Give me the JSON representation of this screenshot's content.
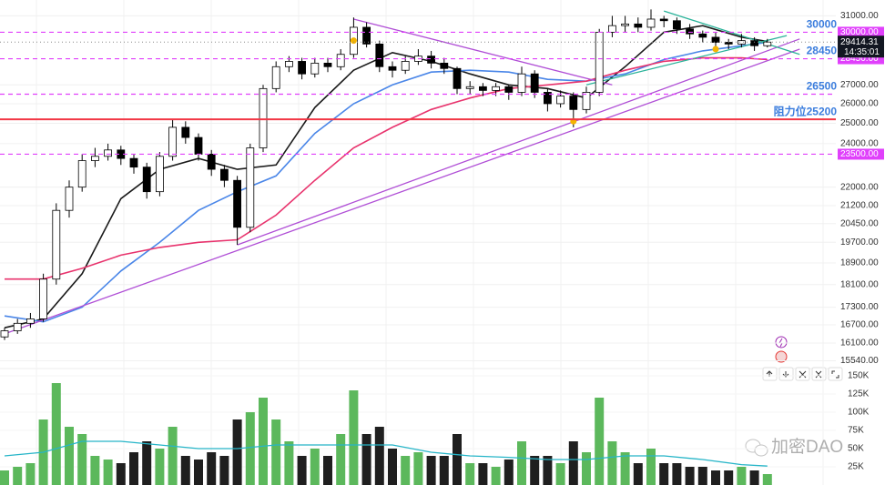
{
  "chart_data": {
    "type": "candlestick",
    "log_y": true,
    "grid": true,
    "up_color": "#ffffff",
    "down_color": "#000000",
    "volume_up_color": "#5cb85c",
    "volume_down_color": "#1f1f1f",
    "open": [
      16300,
      16500,
      16750,
      16900,
      18300,
      21000,
      22000,
      23200,
      23400,
      23700,
      23300,
      22900,
      21800,
      23400,
      24800,
      24300,
      23500,
      22800,
      22300,
      20300,
      23800,
      26800,
      28000,
      28300,
      27600,
      28200,
      28000,
      28700,
      30300,
      29300,
      28000,
      27800,
      28300,
      28600,
      28200,
      27900,
      26800,
      26900,
      26700,
      26900,
      26600,
      27600,
      26600,
      26000,
      26400,
      25700,
      26600,
      30000,
      30400,
      30500,
      30300,
      30800,
      30700,
      30200,
      29900,
      29700,
      29400,
      29300,
      29500,
      29200
    ],
    "high": [
      16600,
      16900,
      17100,
      18500,
      21300,
      22300,
      23500,
      23800,
      24000,
      23900,
      23500,
      23100,
      23600,
      25200,
      25100,
      24500,
      23700,
      23000,
      22500,
      24000,
      27000,
      28300,
      28600,
      28500,
      28500,
      28500,
      29000,
      30900,
      30600,
      29500,
      28300,
      28600,
      29000,
      28900,
      28500,
      28000,
      27200,
      27100,
      27100,
      27000,
      28000,
      27800,
      26800,
      26700,
      26600,
      26900,
      30200,
      31000,
      31000,
      30900,
      31400,
      31000,
      30900,
      30500,
      30100,
      30000,
      29600,
      29900,
      29700,
      29600
    ],
    "low": [
      16200,
      16400,
      16600,
      16800,
      18100,
      20700,
      21800,
      22900,
      23200,
      23000,
      22600,
      21500,
      21600,
      23200,
      24000,
      23200,
      22500,
      22000,
      19600,
      20100,
      23600,
      26600,
      27700,
      27300,
      27400,
      27700,
      27800,
      28500,
      29100,
      27700,
      27400,
      27600,
      28100,
      27900,
      27600,
      26500,
      26500,
      26400,
      26400,
      26200,
      26400,
      26300,
      25600,
      25800,
      24800,
      25500,
      26400,
      29700,
      30000,
      30000,
      30100,
      30300,
      29900,
      29600,
      29400,
      29000,
      29000,
      29100,
      28900,
      29100
    ],
    "close": [
      16500,
      16750,
      16900,
      18300,
      21000,
      22000,
      23200,
      23400,
      23700,
      23300,
      22900,
      21800,
      23400,
      24800,
      24300,
      23500,
      22800,
      22300,
      20300,
      23800,
      26800,
      28000,
      28300,
      27600,
      28200,
      28000,
      28700,
      30300,
      29300,
      28000,
      27800,
      28300,
      28600,
      28200,
      27900,
      26800,
      26900,
      26700,
      26900,
      26600,
      27600,
      26600,
      26000,
      26400,
      25700,
      26600,
      30000,
      30400,
      30500,
      30300,
      30800,
      30700,
      30200,
      29900,
      29700,
      29400,
      29300,
      29500,
      29200,
      29414.31
    ],
    "volume": [
      20000,
      25000,
      30000,
      90000,
      140000,
      80000,
      70000,
      40000,
      35000,
      30000,
      45000,
      60000,
      50000,
      80000,
      40000,
      35000,
      45000,
      40000,
      90000,
      100000,
      120000,
      90000,
      60000,
      40000,
      50000,
      40000,
      70000,
      130000,
      70000,
      80000,
      50000,
      40000,
      45000,
      40000,
      40000,
      70000,
      30000,
      30000,
      25000,
      35000,
      60000,
      40000,
      40000,
      30000,
      60000,
      45000,
      120000,
      60000,
      45000,
      30000,
      50000,
      30000,
      30000,
      25000,
      25000,
      20000,
      20000,
      25000,
      20000,
      15000
    ],
    "ylim": [
      15300,
      32000
    ],
    "yticks": [
      {
        "value": 31000,
        "label": "31000.00"
      },
      {
        "value": 27000,
        "label": "27000.00"
      },
      {
        "value": 26000,
        "label": "26000.00"
      },
      {
        "value": 25000,
        "label": "25000.00"
      },
      {
        "value": 24000,
        "label": "24000.00"
      },
      {
        "value": 22000,
        "label": "22000.00"
      },
      {
        "value": 21200,
        "label": "21200.00"
      },
      {
        "value": 20450,
        "label": "20450.00"
      },
      {
        "value": 19700,
        "label": "19700.00"
      },
      {
        "value": 18900,
        "label": "18900.00"
      },
      {
        "value": 18100,
        "label": "18100.00"
      },
      {
        "value": 17300,
        "label": "17300.00"
      },
      {
        "value": 16700,
        "label": "16700.00"
      },
      {
        "value": 16100,
        "label": "16100.00"
      },
      {
        "value": 15540,
        "label": "15540.00"
      }
    ],
    "volume_ylim": [
      0,
      160000
    ],
    "volume_ticks": [
      {
        "value": 150000,
        "label": "150K"
      },
      {
        "value": 125000,
        "label": "125K"
      },
      {
        "value": 100000,
        "label": "100K"
      },
      {
        "value": 75000,
        "label": "75K"
      },
      {
        "value": 50000,
        "label": "50K"
      },
      {
        "value": 25000,
        "label": "25K"
      }
    ],
    "moving_averages": [
      {
        "color": "#1a1a1a",
        "x": [
          0,
          3,
          6,
          9,
          12,
          15,
          18,
          21,
          24,
          27,
          30,
          33,
          36,
          39,
          42,
          45,
          48,
          51,
          54,
          57,
          59
        ],
        "values": [
          16600,
          16900,
          18500,
          21500,
          22800,
          23300,
          22800,
          23000,
          25800,
          27800,
          28800,
          28300,
          27600,
          27000,
          26800,
          26300,
          28000,
          30000,
          30400,
          29700,
          29450
        ]
      },
      {
        "color": "#4a86e8",
        "x": [
          0,
          3,
          6,
          9,
          12,
          15,
          18,
          21,
          24,
          27,
          30,
          33,
          36,
          39,
          42,
          45,
          48,
          51,
          54,
          57,
          59
        ],
        "values": [
          17000,
          16800,
          17300,
          18600,
          19700,
          21000,
          21800,
          22500,
          24500,
          26000,
          27000,
          27700,
          27800,
          27700,
          27300,
          27200,
          27600,
          28400,
          28900,
          29200,
          29400
        ]
      },
      {
        "color": "#e8336d",
        "x": [
          0,
          3,
          6,
          9,
          12,
          15,
          18,
          21,
          24,
          27,
          30,
          33,
          36,
          39,
          42,
          45,
          48,
          51,
          54,
          57,
          59
        ],
        "values": [
          18300,
          18300,
          18700,
          19200,
          19500,
          19700,
          19800,
          20800,
          22300,
          23800,
          24800,
          25700,
          26300,
          26800,
          27000,
          27200,
          27800,
          28300,
          28500,
          28500,
          28400
        ]
      }
    ],
    "volume_ma": {
      "color": "#26b5c8",
      "x": [
        0,
        3,
        6,
        9,
        12,
        15,
        18,
        21,
        24,
        27,
        30,
        33,
        36,
        39,
        42,
        45,
        48,
        51,
        54,
        57,
        59
      ],
      "values": [
        40000,
        45000,
        60000,
        60000,
        55000,
        50000,
        50000,
        55000,
        55000,
        55000,
        55000,
        45000,
        40000,
        38000,
        35000,
        35000,
        40000,
        40000,
        35000,
        28000,
        26000
      ]
    },
    "trendlines": [
      {
        "color": "#b04fd6",
        "x": [
          0,
          61.5
        ],
        "values": [
          16400,
          29000
        ]
      },
      {
        "color": "#b04fd6",
        "x": [
          18,
          61.5
        ],
        "values": [
          19600,
          29600
        ]
      },
      {
        "color": "#b04fd6",
        "x": [
          27,
          47
        ],
        "values": [
          30800,
          27000
        ]
      },
      {
        "color": "#2bb39a",
        "x": [
          51,
          61.5
        ],
        "values": [
          31300,
          28700
        ]
      },
      {
        "color": "#2bb39a",
        "x": [
          45,
          60.5
        ],
        "values": [
          27000,
          29800
        ]
      }
    ],
    "markers": {
      "color": "#f5b400",
      "x": [
        27,
        44,
        55
      ],
      "values": [
        29500,
        25100,
        29000
      ]
    },
    "levels": [
      {
        "value": 30000,
        "label": "30000",
        "axis_label": "30000.00",
        "color": "#e040fb",
        "dashed": true
      },
      {
        "value": 28450,
        "label": "28450",
        "axis_label": "28450.00",
        "color": "#e040fb",
        "dashed": true
      },
      {
        "value": 26500,
        "label": "26500",
        "color": "#e040fb",
        "dashed": true
      },
      {
        "value": 25200,
        "label": "阻力位25200",
        "color": "#f23645",
        "dashed": false
      },
      {
        "value": 23500,
        "axis_label": "23500.00",
        "color": "#e040fb",
        "dashed": true
      }
    ],
    "last_price": 29414.31,
    "last_time": "14:35:01"
  },
  "watermark": "加密DAO"
}
